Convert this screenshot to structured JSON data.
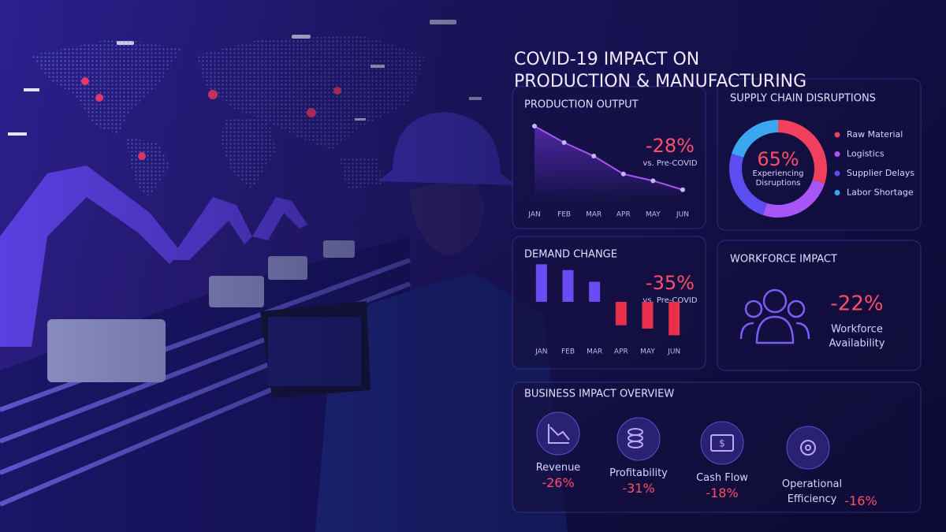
{
  "title_lines": [
    "COVID-19 IMPACT ON",
    "PRODUCTION & MANUFACTURING"
  ],
  "production_output": {
    "title": "PRODUCTION OUTPUT",
    "change": "-28%",
    "note": "vs. Pre-COVID",
    "chart_data": {
      "type": "line",
      "categories": [
        "JAN",
        "FEB",
        "MAR",
        "APR",
        "MAY",
        "JUN"
      ],
      "values": [
        100,
        78,
        60,
        36,
        27,
        15
      ],
      "color": "#a855f7",
      "ylim": [
        0,
        100
      ]
    }
  },
  "supply_chain": {
    "title": "SUPPLY CHAIN DISRUPTIONS",
    "center_value": "65%",
    "center_label": "Experiencing Disruptions",
    "chart_data": {
      "type": "donut",
      "categories": [
        "Raw Material",
        "Logistics",
        "Supplier Delays",
        "Labor Shortage"
      ],
      "values": [
        30,
        25,
        25,
        20
      ],
      "colors": [
        "#f0405e",
        "#a855f7",
        "#5b4df0",
        "#3aa8f0"
      ]
    }
  },
  "demand_change": {
    "title": "DEMAND CHANGE",
    "change": "-35%",
    "note": "vs. Pre-COVID",
    "chart_data": {
      "type": "bar",
      "categories": [
        "JAN",
        "FEB",
        "MAR",
        "APR",
        "MAY",
        "JUN"
      ],
      "values": [
        45,
        38,
        24,
        -28,
        -32,
        -40
      ],
      "positive_color": "#6a4cf5",
      "negative_color": "#e8304a",
      "ylim": [
        -50,
        50
      ]
    }
  },
  "workforce": {
    "title": "WORKFORCE IMPACT",
    "change": "-22%",
    "label_lines": [
      "Workforce",
      "Availability"
    ]
  },
  "business_impact": {
    "title": "BUSINESS IMPACT OVERVIEW",
    "items": [
      {
        "label": "Revenue",
        "change": "-26%"
      },
      {
        "label": "Profitability",
        "change": "-31%"
      },
      {
        "label": "Cash Flow",
        "change": "-18%"
      },
      {
        "label": "Operational Efficiency",
        "change": "-16%"
      }
    ]
  }
}
